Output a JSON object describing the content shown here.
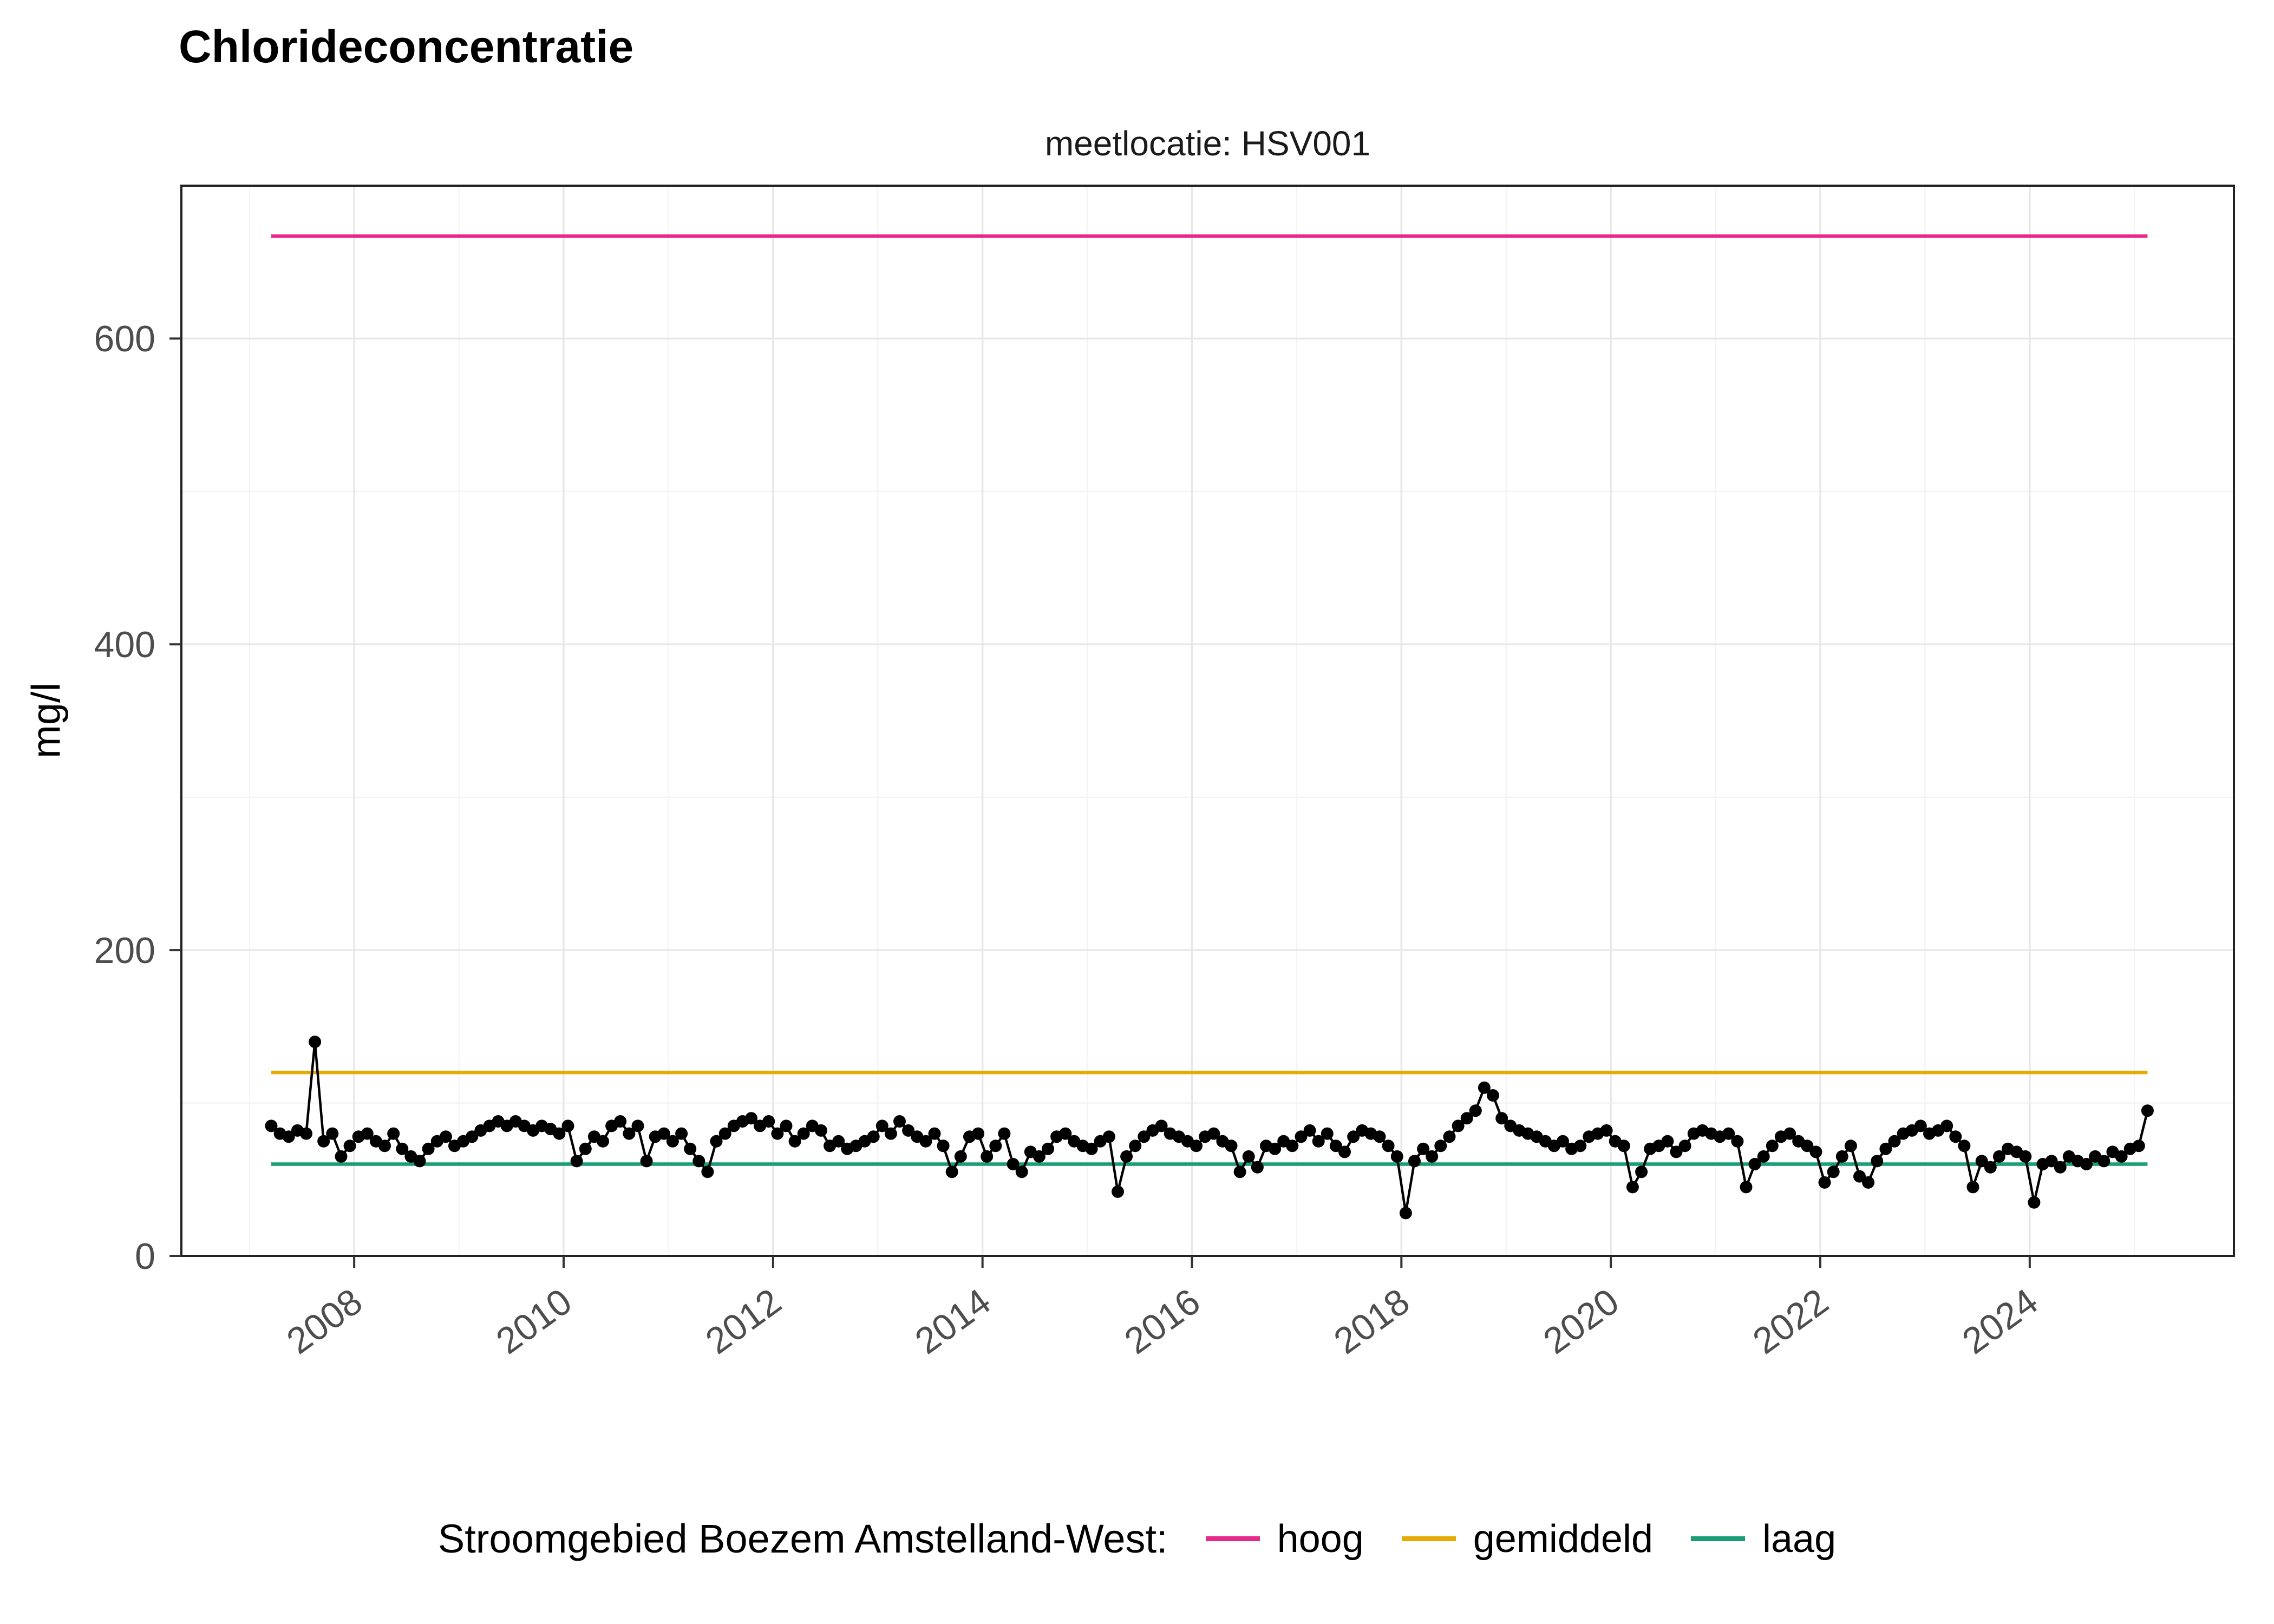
{
  "title": "Chlorideconcentratie",
  "subtitle": "meetlocatie: HSV001",
  "y_axis": {
    "label": "mg/l",
    "ticks": [
      0,
      200,
      400,
      600
    ]
  },
  "x_axis": {
    "ticks": [
      2008,
      2010,
      2012,
      2014,
      2016,
      2018,
      2020,
      2022,
      2024
    ]
  },
  "legend": {
    "title": "Stroomgebied Boezem Amstelland-West:",
    "items": [
      {
        "label": "hoog",
        "color": "#E7298A"
      },
      {
        "label": "gemiddeld",
        "color": "#E6AB02"
      },
      {
        "label": "laag",
        "color": "#1B9E77"
      }
    ]
  },
  "chart_data": {
    "type": "line",
    "title": "Chlorideconcentratie",
    "subtitle": "meetlocatie: HSV001",
    "xlabel": "",
    "ylabel": "mg/l",
    "xlim": [
      2006.35,
      2025.95
    ],
    "ylim": [
      0,
      700
    ],
    "x_ticks": [
      2008,
      2010,
      2012,
      2014,
      2016,
      2018,
      2020,
      2022,
      2024
    ],
    "y_ticks": [
      0,
      200,
      400,
      600
    ],
    "grid": {
      "major_color": "#e8e8e8",
      "minor_color": "#f4f4f4",
      "minor_y": [
        100,
        300,
        500,
        700
      ],
      "minor_x": [
        2007,
        2009,
        2011,
        2013,
        2015,
        2017,
        2019,
        2021,
        2023,
        2025
      ]
    },
    "legend_position": "bottom",
    "reference_lines": [
      {
        "name": "hoog",
        "value": 667,
        "color": "#E7298A"
      },
      {
        "name": "gemiddeld",
        "value": 120,
        "color": "#E6AB02"
      },
      {
        "name": "laag",
        "value": 60,
        "color": "#1B9E77"
      }
    ],
    "series": [
      {
        "name": "chlorideconcentratie HSV001",
        "color": "#000000",
        "x_start": 2007.2083,
        "x_step_years": 0.083333,
        "values": [
          85,
          80,
          78,
          82,
          80,
          140,
          75,
          80,
          65,
          72,
          78,
          80,
          75,
          72,
          80,
          70,
          65,
          62,
          70,
          75,
          78,
          72,
          75,
          78,
          82,
          85,
          88,
          85,
          88,
          85,
          82,
          85,
          83,
          80,
          85,
          62,
          70,
          78,
          75,
          85,
          88,
          80,
          85,
          62,
          78,
          80,
          75,
          80,
          70,
          62,
          55,
          75,
          80,
          85,
          88,
          90,
          85,
          88,
          80,
          85,
          75,
          80,
          85,
          82,
          72,
          75,
          70,
          72,
          75,
          78,
          85,
          80,
          88,
          82,
          78,
          75,
          80,
          72,
          55,
          65,
          78,
          80,
          65,
          72,
          80,
          60,
          55,
          68,
          65,
          70,
          78,
          80,
          75,
          72,
          70,
          75,
          78,
          42,
          65,
          72,
          78,
          82,
          85,
          80,
          78,
          75,
          72,
          78,
          80,
          75,
          72,
          55,
          65,
          58,
          72,
          70,
          75,
          72,
          78,
          82,
          75,
          80,
          72,
          68,
          78,
          82,
          80,
          78,
          72,
          65,
          28,
          62,
          70,
          65,
          72,
          78,
          85,
          90,
          95,
          110,
          105,
          90,
          85,
          82,
          80,
          78,
          75,
          72,
          75,
          70,
          72,
          78,
          80,
          82,
          75,
          72,
          45,
          55,
          70,
          72,
          75,
          68,
          72,
          80,
          82,
          80,
          78,
          80,
          75,
          45,
          60,
          65,
          72,
          78,
          80,
          75,
          72,
          68,
          48,
          55,
          65,
          72,
          52,
          48,
          62,
          70,
          75,
          80,
          82,
          85,
          80,
          82,
          85,
          78,
          72,
          45,
          62,
          58,
          65,
          70,
          68,
          65,
          35,
          60,
          62,
          58,
          65,
          62,
          60,
          65,
          62,
          68,
          65,
          70,
          72,
          95
        ]
      }
    ]
  }
}
